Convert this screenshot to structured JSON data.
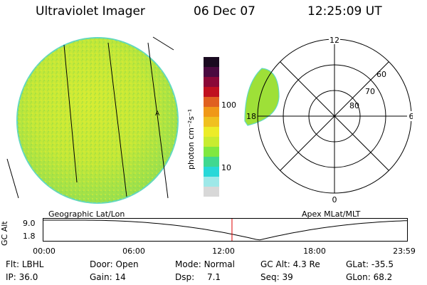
{
  "header": {
    "title": "Ultraviolet Imager",
    "date": "06 Dec 07",
    "time": "12:25:09 UT"
  },
  "colorbar": {
    "unit_label": "photon cm⁻²s⁻¹",
    "tick_100": "100",
    "tick_10": "10",
    "colors": [
      "#d8d8d8",
      "#9ee8e8",
      "#28d8d8",
      "#40d890",
      "#80e840",
      "#c8ec30",
      "#ecec28",
      "#f0c020",
      "#f09818",
      "#e06020",
      "#c01020",
      "#8a0838",
      "#4a0a40",
      "#1a0a20"
    ]
  },
  "polar": {
    "mlt_labels": {
      "top": "12",
      "left": "18",
      "right": "6",
      "bottom": "0"
    },
    "lat_labels": [
      "60",
      "70",
      "80"
    ]
  },
  "map_labels": {
    "left": "Geographic Lat/Lon",
    "right": "Apex MLat/MLT"
  },
  "altitude": {
    "axis_label": "GC Alt",
    "tick_top": "9.0",
    "tick_bottom": "1.8",
    "time_ticks": [
      "00:00",
      "06:00",
      "12:00",
      "18:00",
      "23:59"
    ],
    "current_hour": 12.42
  },
  "info": {
    "row1": [
      {
        "label": "Flt:",
        "value": "LBHL"
      },
      {
        "label": "Door:",
        "value": "Open"
      },
      {
        "label": "Mode:",
        "value": "Normal"
      },
      {
        "label": "GC Alt:",
        "value": "4.3 Re"
      },
      {
        "label": "GLat:",
        "value": "-35.5"
      }
    ],
    "row2": [
      {
        "label": "IP:",
        "value": "36.0"
      },
      {
        "label": "Gain:",
        "value": "14"
      },
      {
        "label": "Dsp:",
        "value": "7.1"
      },
      {
        "label": "Seq:",
        "value": "39"
      },
      {
        "label": "GLon:",
        "value": "68.2"
      }
    ]
  }
}
